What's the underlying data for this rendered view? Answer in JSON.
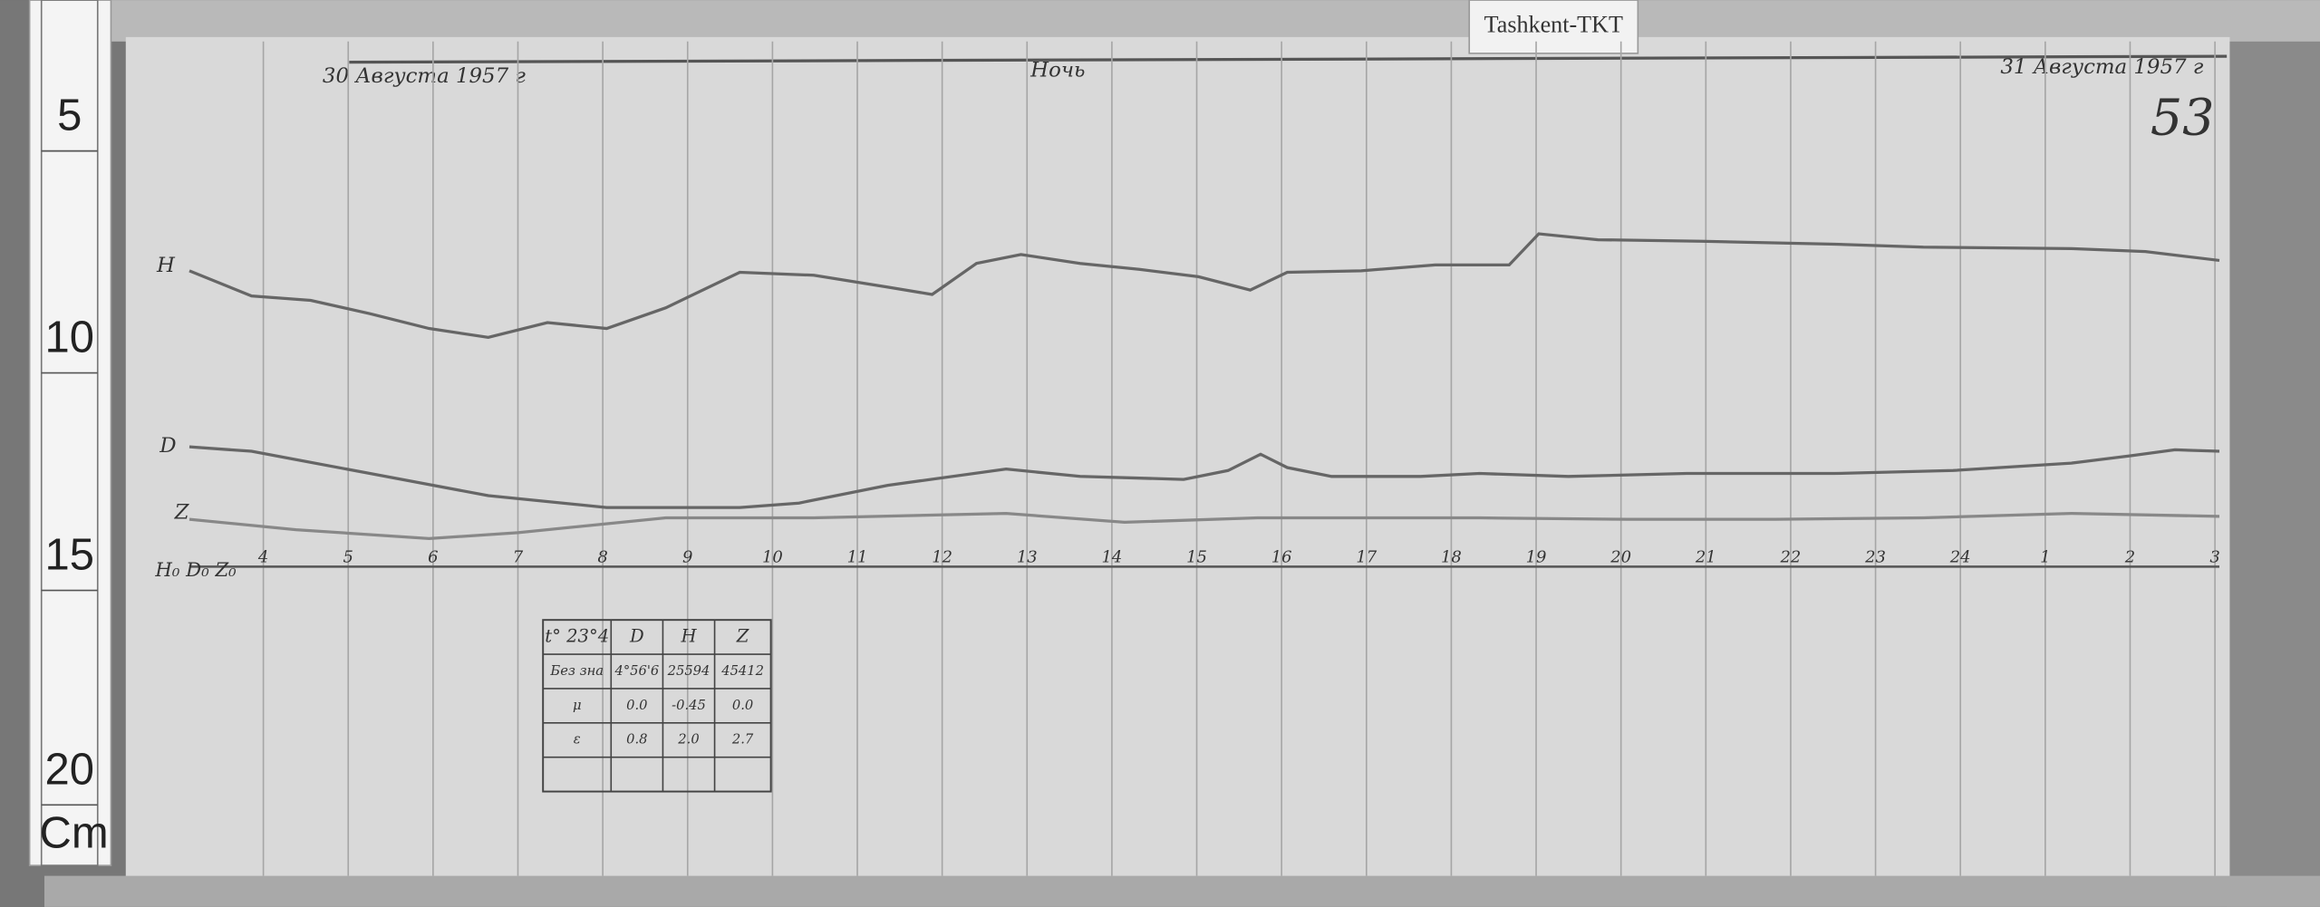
{
  "label": "Tashkent-TKT",
  "header": {
    "date_left": "30 Августа 1957 г",
    "center": "Ночь",
    "date_right": "31 Августа 1957 г",
    "sheet_number": "53"
  },
  "traces": {
    "h": "H",
    "d": "D",
    "z": "Z",
    "baseline": "H₀ D₀ Z₀"
  },
  "hours": [
    "4",
    "5",
    "6",
    "7",
    "8",
    "9",
    "10",
    "11",
    "12",
    "13",
    "14",
    "15",
    "16",
    "17",
    "18",
    "19",
    "20",
    "21",
    "22",
    "23",
    "24",
    "1",
    "2",
    "3"
  ],
  "table": {
    "rows": [
      [
        "t° 23°4",
        "D",
        "H",
        "Z"
      ],
      [
        "Без зна",
        "4°56'6",
        "25594",
        "45412"
      ],
      [
        "μ",
        "0.0",
        "-0.45",
        "0.0"
      ],
      [
        "ε",
        "0.8",
        "2.0",
        "2.7"
      ],
      [
        "",
        "",
        "",
        ""
      ]
    ]
  },
  "ruler": {
    "marks": [
      "5",
      "10",
      "15",
      "20"
    ],
    "unit": "Cm"
  }
}
